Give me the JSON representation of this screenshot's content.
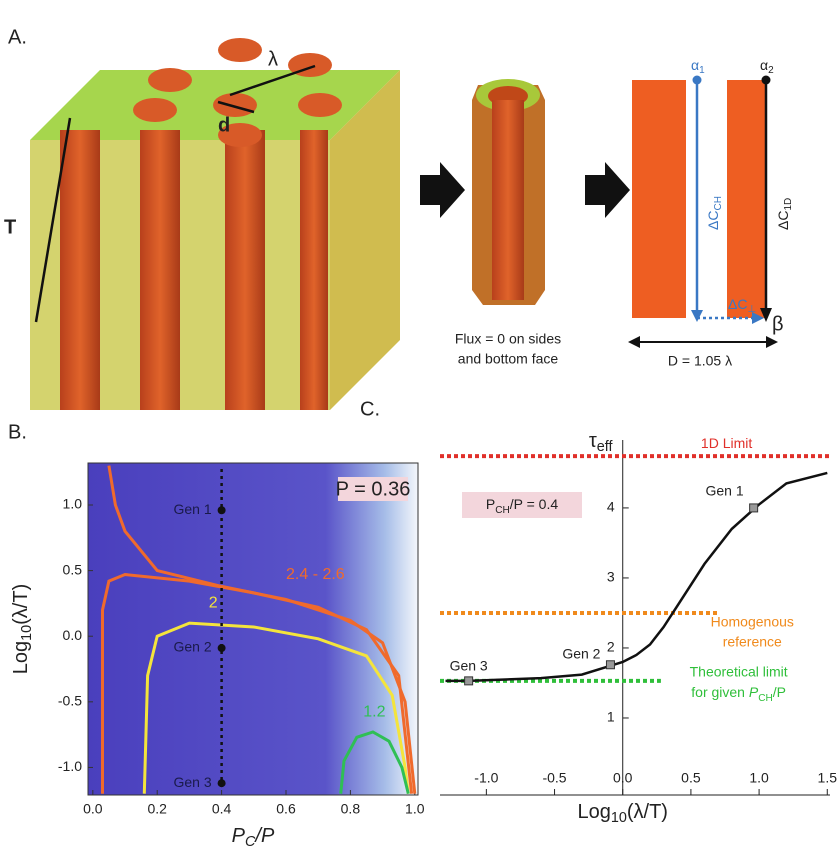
{
  "panel_a": {
    "label": "A.",
    "lambda": "λ",
    "d": "d",
    "t": "T",
    "flux_note": [
      "Flux = 0 on sides",
      "and bottom face"
    ],
    "alpha1": [
      "α",
      "1"
    ],
    "alpha2": [
      "α",
      "2"
    ],
    "dc_ch": [
      "ΔC",
      "CH"
    ],
    "dc_1d": [
      "ΔC",
      "1D"
    ],
    "dc_perp": [
      "ΔC",
      "⊥"
    ],
    "beta": "β",
    "d_eq": "D = 1.05 λ"
  },
  "chart_data": [
    {
      "type": "contour",
      "panel_label": "B.",
      "x_label": [
        "P",
        "C",
        "/P"
      ],
      "y_label": [
        "Log",
        "10",
        "(λ/T)"
      ],
      "xlim": [
        -0.015,
        1.01
      ],
      "ylim": [
        -1.21,
        1.32
      ],
      "xticks": [
        {
          "value": 0,
          "label": "0.0"
        },
        {
          "value": 0.2,
          "label": "0.2"
        },
        {
          "value": 0.4,
          "label": "0.4"
        },
        {
          "value": 0.6,
          "label": "0.6"
        },
        {
          "value": 0.8,
          "label": "0.8"
        },
        {
          "value": 1,
          "label": "1.0"
        }
      ],
      "yticks": [
        {
          "value": -1,
          "label": "-1.0"
        },
        {
          "value": -0.5,
          "label": "-0.5"
        },
        {
          "value": 0,
          "label": "0.0"
        },
        {
          "value": 0.5,
          "label": "0.5"
        },
        {
          "value": 1,
          "label": "1.0"
        }
      ],
      "annotation": "P = 0.36",
      "guide_x": 0.4,
      "contours": [
        {
          "label": "2.4 - 2.6",
          "color": "#f06a2c",
          "lines": [
            {
              "x": [
                0.05,
                0.07,
                0.1,
                0.2,
                0.4,
                0.6,
                0.8,
                0.9,
                0.97,
                1.0
              ],
              "y": [
                1.3,
                1.0,
                0.8,
                0.5,
                0.38,
                0.28,
                0.12,
                -0.05,
                -0.5,
                -1.2
              ]
            },
            {
              "x": [
                0.03,
                0.03,
                0.05,
                0.1,
                0.3,
                0.5,
                0.7,
                0.85,
                0.95,
                0.99
              ],
              "y": [
                -1.2,
                0.2,
                0.42,
                0.47,
                0.42,
                0.33,
                0.22,
                0.05,
                -0.3,
                -1.2
              ]
            }
          ]
        },
        {
          "label": "2",
          "color": "#f4e43c",
          "lines": [
            {
              "x": [
                0.16,
                0.17,
                0.2,
                0.3,
                0.5,
                0.7,
                0.85,
                0.93,
                0.97,
                0.98
              ],
              "y": [
                -1.2,
                -0.3,
                0.0,
                0.1,
                0.07,
                -0.02,
                -0.15,
                -0.45,
                -1.0,
                -1.2
              ]
            }
          ]
        },
        {
          "label": "1.2",
          "color": "#2fbf55",
          "lines": [
            {
              "x": [
                0.77,
                0.78,
                0.82,
                0.87,
                0.92,
                0.96,
                0.98
              ],
              "y": [
                -1.2,
                -0.95,
                -0.77,
                -0.73,
                -0.8,
                -1.0,
                -1.2
              ]
            }
          ]
        }
      ],
      "points": {
        "labels": [
          "Gen 1",
          "Gen 2",
          "Gen 3"
        ],
        "x": [
          0.4,
          0.4,
          0.4
        ],
        "y": [
          0.96,
          -0.09,
          -1.12
        ]
      }
    },
    {
      "type": "line",
      "panel_label": "C.",
      "x_label": [
        "Log",
        "10",
        "(λ/T)"
      ],
      "y_label": [
        "τ",
        "eff"
      ],
      "xlim": [
        -1.34,
        1.52
      ],
      "ylim": [
        -0.1,
        4.97
      ],
      "xticks": [
        {
          "value": -1,
          "label": "-1.0"
        },
        {
          "value": -0.5,
          "label": "-0.5"
        },
        {
          "value": 0,
          "label": "0.0"
        },
        {
          "value": 0.5,
          "label": "0.5"
        },
        {
          "value": 1,
          "label": "1.0"
        },
        {
          "value": 1.5,
          "label": "1.5"
        }
      ],
      "yticks": [
        1,
        2,
        3,
        4
      ],
      "annotation": [
        "P",
        "CH",
        "/P = 0.4"
      ],
      "series": [
        {
          "color": "#111111",
          "x": [
            -1.3,
            -1.13,
            -0.6,
            -0.3,
            -0.1,
            0,
            0.1,
            0.2,
            0.3,
            0.4,
            0.6,
            0.8,
            1.0,
            1.2,
            1.5
          ],
          "y": [
            1.53,
            1.53,
            1.57,
            1.62,
            1.74,
            1.8,
            1.9,
            2.05,
            2.3,
            2.6,
            3.2,
            3.7,
            4.05,
            4.35,
            4.5
          ]
        }
      ],
      "hlines": [
        {
          "label": [
            "1D Limit"
          ],
          "y": 4.74,
          "x_end": 1.52,
          "color": "#e0302a"
        },
        {
          "label": [
            "Homogenous",
            "reference"
          ],
          "y": 2.5,
          "x_end": 0.7,
          "color": "#f08a1c"
        },
        {
          "label": [
            "Theoretical limit",
            "for given ",
            "P",
            "CH",
            "/P"
          ],
          "y": 1.53,
          "x_end": 0.28,
          "color": "#2fbf3a"
        }
      ],
      "points": {
        "labels": [
          "Gen 1",
          "Gen 2",
          "Gen 3"
        ],
        "x": [
          0.96,
          -0.09,
          -1.13
        ],
        "y": [
          4.0,
          1.76,
          1.53
        ]
      }
    }
  ]
}
